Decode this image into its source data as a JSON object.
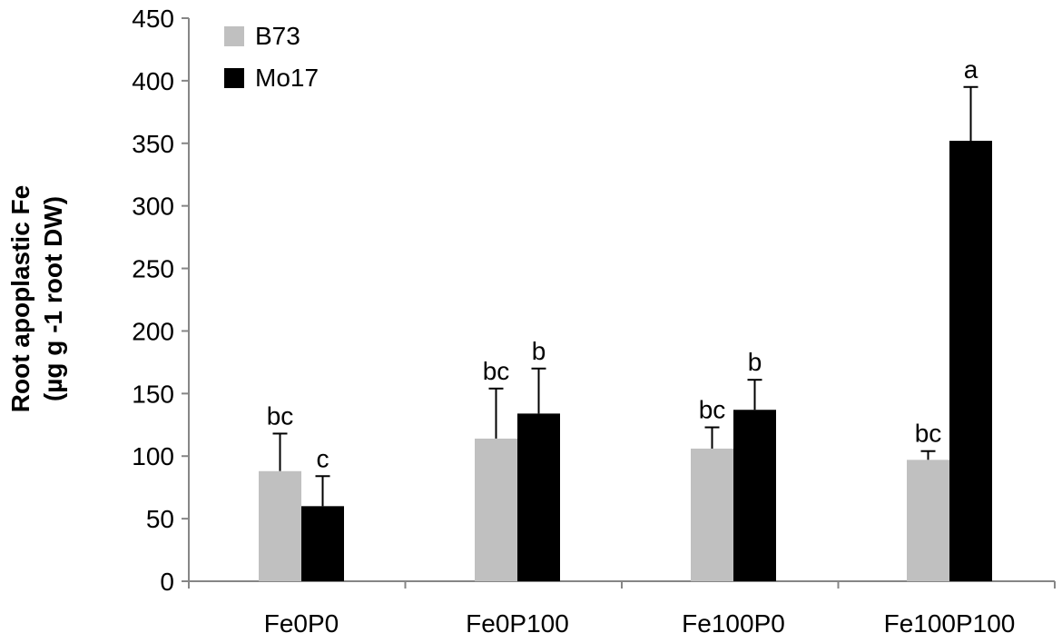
{
  "chart_data": {
    "type": "bar",
    "title": "",
    "xlabel": "",
    "ylabel_line1": "Root apoplastic Fe",
    "ylabel_line2": "(µg g -1  root DW)",
    "ylim": [
      0,
      450
    ],
    "yticks": [
      0,
      50,
      100,
      150,
      200,
      250,
      300,
      350,
      400,
      450
    ],
    "grid": false,
    "legend_position": "top-left",
    "categories": [
      "Fe0P0",
      "Fe0P100",
      "Fe100P0",
      "Fe100P100"
    ],
    "series": [
      {
        "name": "B73",
        "color": "#c0c0c0",
        "values": [
          88,
          114,
          106,
          97
        ],
        "errors": [
          30,
          40,
          17,
          7
        ],
        "labels": [
          "bc",
          "bc",
          "bc",
          "bc"
        ]
      },
      {
        "name": "Mo17",
        "color": "#000000",
        "values": [
          60,
          134,
          137,
          352
        ],
        "errors": [
          24,
          36,
          24,
          43
        ],
        "labels": [
          "c",
          "b",
          "b",
          "a"
        ]
      }
    ]
  }
}
